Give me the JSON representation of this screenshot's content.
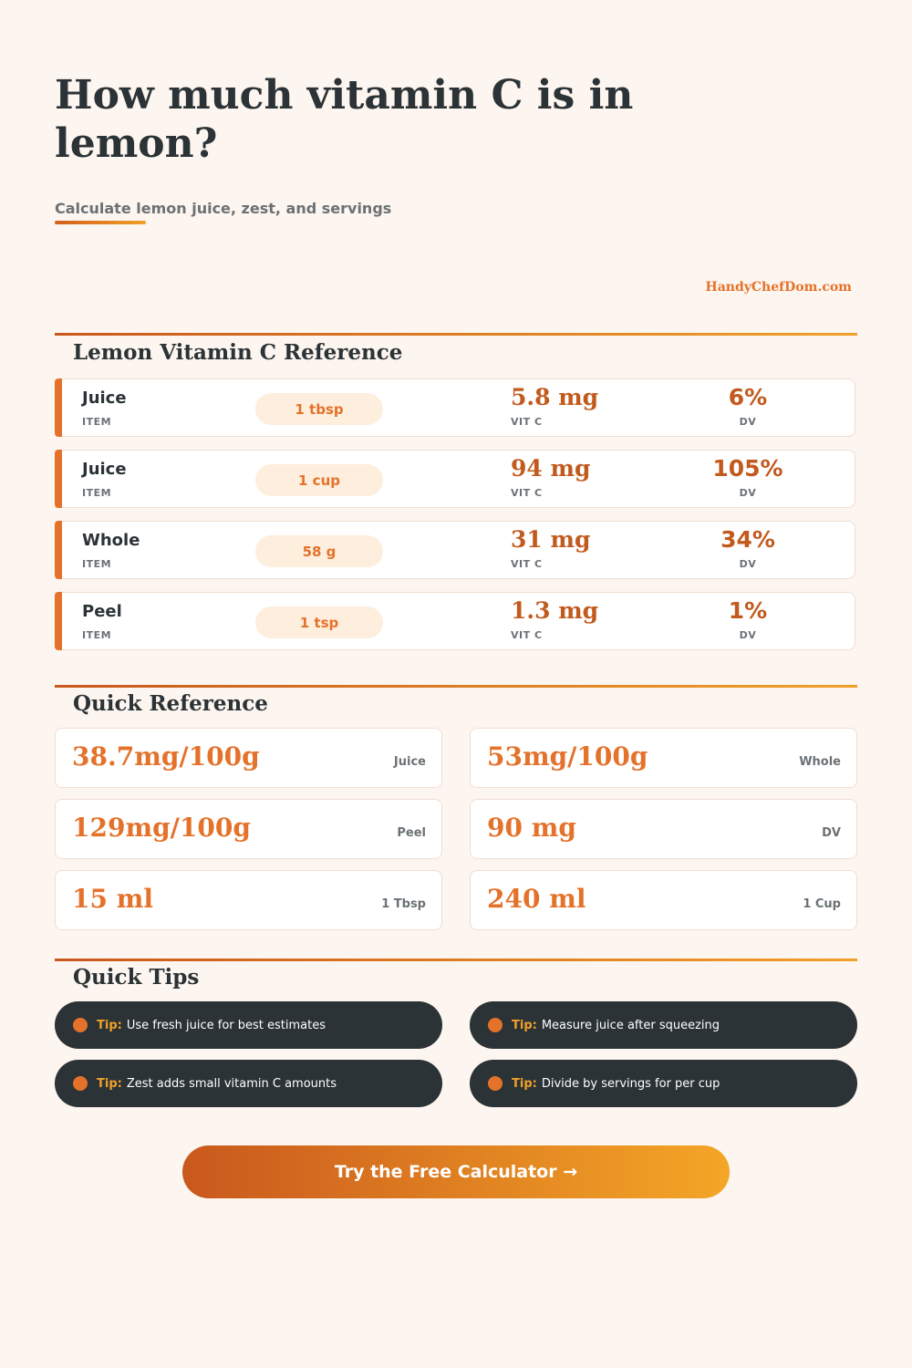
{
  "header": {
    "title": "How much vitamin C is in lemon?",
    "subtitle": "Calculate lemon juice, zest, and servings",
    "brand": "HandyChefDom.com"
  },
  "reference": {
    "title": "Lemon Vitamin C Reference",
    "item_caption": "ITEM",
    "vit_caption": "VIT C",
    "dv_caption": "DV",
    "rows": [
      {
        "item": "Juice",
        "amount": "1 tbsp",
        "vit_c": "5.8 mg",
        "dv": "6%"
      },
      {
        "item": "Juice",
        "amount": "1 cup",
        "vit_c": "94 mg",
        "dv": "105%"
      },
      {
        "item": "Whole",
        "amount": "58 g",
        "vit_c": "31 mg",
        "dv": "34%"
      },
      {
        "item": "Peel",
        "amount": "1 tsp",
        "vit_c": "1.3 mg",
        "dv": "1%"
      }
    ]
  },
  "quick_reference": {
    "title": "Quick Reference",
    "cards": [
      {
        "value": "38.7mg/100g",
        "label": "Juice"
      },
      {
        "value": "53mg/100g",
        "label": "Whole"
      },
      {
        "value": "129mg/100g",
        "label": "Peel"
      },
      {
        "value": "90 mg",
        "label": "DV"
      },
      {
        "value": "15 ml",
        "label": "1 Tbsp"
      },
      {
        "value": "240 ml",
        "label": "1 Cup"
      }
    ]
  },
  "tips": {
    "title": "Quick Tips",
    "tip_label": "Tip:",
    "items": [
      "Use fresh juice for best estimates",
      "Measure juice after squeezing",
      "Zest adds small vitamin C amounts",
      "Divide by servings for per cup"
    ]
  },
  "cta": {
    "label": "Try the Free Calculator →"
  },
  "colors": {
    "background": "#fdf5ef",
    "accent": "#e4722a",
    "accent_dark": "#c25a1e",
    "gold": "#f0a02a",
    "dark": "#2b3336"
  }
}
